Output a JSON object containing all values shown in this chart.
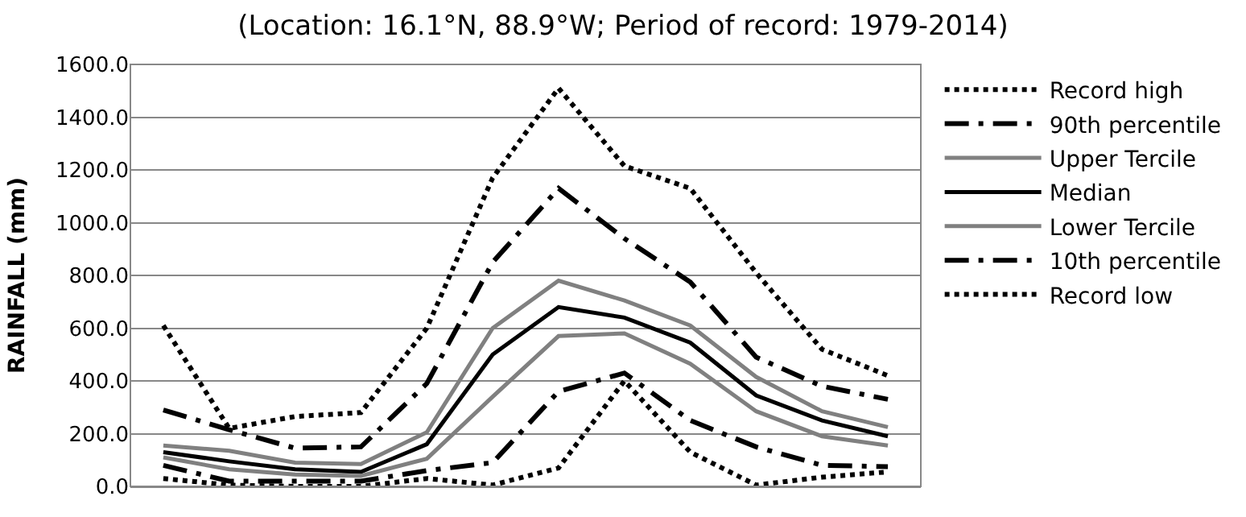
{
  "chart_data": {
    "type": "line",
    "title": "(Location: 16.1°N, 88.9°W; Period of record: 1979-2014)",
    "ylabel": "RAINFALL (mm)",
    "categories": [
      null,
      null,
      null,
      null,
      null,
      null,
      null,
      null,
      null,
      null,
      null,
      null
    ],
    "ylim": [
      0,
      1600
    ],
    "yticks": [
      {
        "value": 0,
        "label": "0.0"
      },
      {
        "value": 200,
        "label": "200.0"
      },
      {
        "value": 400,
        "label": "400.0"
      },
      {
        "value": 600,
        "label": "600.0"
      },
      {
        "value": 800,
        "label": "800.0"
      },
      {
        "value": 1000,
        "label": "1000.0"
      },
      {
        "value": 1200,
        "label": "1200.0"
      },
      {
        "value": 1400,
        "label": "1400.0"
      },
      {
        "value": 1600,
        "label": "1600.0"
      }
    ],
    "grid": "y",
    "legend": "right",
    "marker": "none",
    "tick_labels": "y",
    "series": [
      {
        "name": "Record high",
        "color": "#000000",
        "line_style": "dotted",
        "values": [
          610,
          220,
          265,
          280,
          600,
          1170,
          1510,
          1215,
          1130,
          810,
          520,
          420
        ]
      },
      {
        "name": "90th percentile",
        "color": "#000000",
        "line_style": "dashdot",
        "values": [
          290,
          215,
          145,
          150,
          390,
          850,
          1130,
          940,
          775,
          490,
          380,
          330
        ]
      },
      {
        "name": "Upper Tercile",
        "color": "#808080",
        "line_style": "solid",
        "values": [
          155,
          135,
          90,
          85,
          205,
          600,
          780,
          705,
          610,
          415,
          285,
          225
        ]
      },
      {
        "name": "Median",
        "color": "#000000",
        "line_style": "solid",
        "values": [
          130,
          95,
          65,
          55,
          160,
          500,
          680,
          640,
          545,
          345,
          250,
          190
        ]
      },
      {
        "name": "Lower Tercile",
        "color": "#808080",
        "line_style": "solid",
        "values": [
          110,
          65,
          45,
          40,
          105,
          340,
          570,
          580,
          465,
          285,
          190,
          155
        ]
      },
      {
        "name": "10th percentile",
        "color": "#000000",
        "line_style": "dashdot",
        "values": [
          80,
          20,
          20,
          20,
          60,
          90,
          360,
          430,
          250,
          150,
          80,
          75
        ]
      },
      {
        "name": "Record low",
        "color": "#000000",
        "line_style": "dotted",
        "values": [
          30,
          5,
          0,
          0,
          30,
          5,
          70,
          400,
          130,
          5,
          35,
          55
        ]
      }
    ]
  }
}
